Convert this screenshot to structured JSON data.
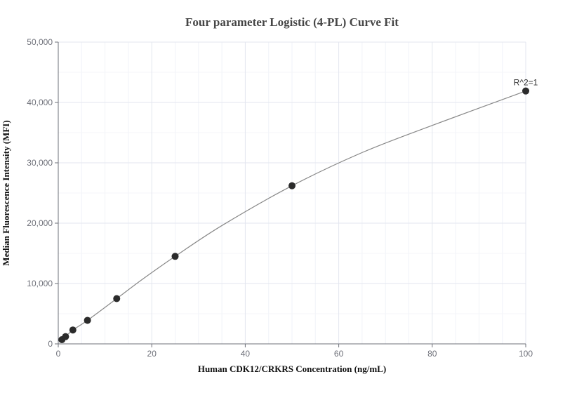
{
  "chart_data": {
    "type": "scatter",
    "title": "Four parameter Logistic (4-PL) Curve Fit",
    "xlabel": "Human CDK12/CRKRS Concentration (ng/mL)",
    "ylabel": "Median Fluorescence Intensity (MFI)",
    "xlim": [
      0,
      100
    ],
    "ylim": [
      0,
      50000
    ],
    "x_ticks": [
      0,
      20,
      40,
      60,
      80,
      100
    ],
    "x_tick_labels": [
      "0",
      "20",
      "40",
      "60",
      "80",
      "100"
    ],
    "y_ticks": [
      0,
      10000,
      20000,
      30000,
      40000,
      50000
    ],
    "y_tick_labels": [
      "0",
      "10,000",
      "20,000",
      "30,000",
      "40,000",
      "50,000"
    ],
    "grid": true,
    "legend": null,
    "series": [
      {
        "name": "Standard points",
        "type": "scatter",
        "color": "#2b2b2b",
        "x": [
          0.78,
          1.56,
          3.125,
          6.25,
          12.5,
          25,
          50,
          100
        ],
        "y": [
          700,
          1200,
          2300,
          3900,
          7500,
          14500,
          26200,
          41900
        ]
      },
      {
        "name": "4-PL fit",
        "type": "line",
        "color": "#888888",
        "x": [
          0.78,
          1.56,
          3.125,
          6.25,
          12.5,
          18,
          25,
          35,
          50,
          65,
          80,
          100
        ],
        "y": [
          700,
          1200,
          2300,
          3900,
          7500,
          10700,
          14500,
          19600,
          26200,
          31700,
          36200,
          41900
        ]
      }
    ],
    "annotations": [
      {
        "text": "R^2=1",
        "x": 100,
        "y": 41900,
        "position": "above"
      }
    ]
  },
  "labels": {
    "title": "Four parameter Logistic (4-PL) Curve Fit",
    "xlabel": "Human CDK12/CRKRS Concentration (ng/mL)",
    "ylabel": "Median Fluorescence Intensity (MFI)",
    "annotation": "R^2=1"
  }
}
